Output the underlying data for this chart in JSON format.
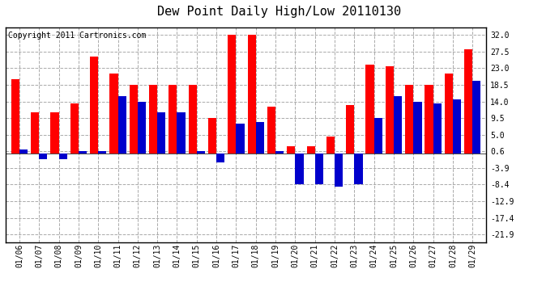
{
  "title": "Dew Point Daily High/Low 20110130",
  "copyright": "Copyright 2011 Cartronics.com",
  "dates": [
    "01/06",
    "01/07",
    "01/08",
    "01/09",
    "01/10",
    "01/11",
    "01/12",
    "01/13",
    "01/14",
    "01/15",
    "01/16",
    "01/17",
    "01/18",
    "01/19",
    "01/20",
    "01/21",
    "01/22",
    "01/23",
    "01/24",
    "01/25",
    "01/26",
    "01/27",
    "01/28",
    "01/29"
  ],
  "high": [
    20.0,
    11.0,
    11.0,
    13.5,
    26.0,
    21.5,
    18.5,
    18.5,
    18.5,
    18.5,
    9.5,
    32.0,
    32.0,
    12.5,
    2.0,
    2.0,
    4.5,
    13.0,
    24.0,
    23.5,
    18.5,
    18.5,
    21.5,
    28.0
  ],
  "low": [
    1.0,
    -1.5,
    -1.5,
    0.6,
    0.6,
    15.5,
    14.0,
    11.0,
    11.0,
    0.6,
    -2.5,
    8.0,
    8.5,
    0.6,
    -8.4,
    -8.4,
    -9.0,
    -8.4,
    9.5,
    15.5,
    14.0,
    13.5,
    14.5,
    19.5
  ],
  "high_color": "#ff0000",
  "low_color": "#0000cc",
  "bg_color": "#ffffff",
  "plot_bg_color": "#ffffff",
  "grid_color": "#aaaaaa",
  "yticks": [
    -21.9,
    -17.4,
    -12.9,
    -8.4,
    -3.9,
    0.6,
    5.0,
    9.5,
    14.0,
    18.5,
    23.0,
    27.5,
    32.0
  ],
  "ylim": [
    -24.0,
    34.0
  ],
  "title_fontsize": 11,
  "copyright_fontsize": 7
}
